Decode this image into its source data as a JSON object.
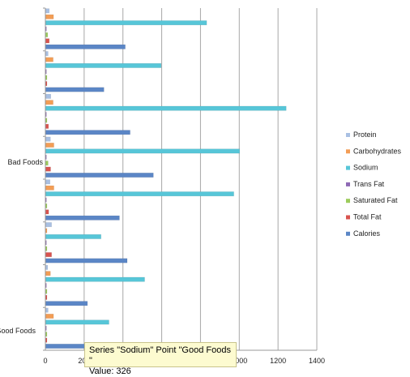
{
  "chart_data": {
    "type": "bar",
    "orientation": "horizontal",
    "title": "",
    "xlabel": "",
    "ylabel": "",
    "xlim": [
      0,
      1400
    ],
    "x_ticks": [
      "0",
      "200",
      "400",
      "600",
      "800",
      "1000",
      "1200",
      "1400"
    ],
    "grid": true,
    "legend_position": "right",
    "category_labels": [
      "Good Foods",
      "Bad Foods"
    ],
    "groups_bottom_to_top": [
      {
        "Calories": 210,
        "Total Fat": 3,
        "Saturated Fat": 1,
        "Trans Fat": 0,
        "Sodium": 326,
        "Carbohydrates": 40,
        "Protein": 12
      },
      {
        "Calories": 215,
        "Total Fat": 3,
        "Saturated Fat": 1,
        "Trans Fat": 0,
        "Sodium": 510,
        "Carbohydrates": 24,
        "Protein": 10
      },
      {
        "Calories": 420,
        "Total Fat": 30,
        "Saturated Fat": 1,
        "Trans Fat": 0,
        "Sodium": 285,
        "Carbohydrates": 5,
        "Protein": 30
      },
      {
        "Calories": 380,
        "Total Fat": 15,
        "Saturated Fat": 3,
        "Trans Fat": 0,
        "Sodium": 970,
        "Carbohydrates": 42,
        "Protein": 22
      },
      {
        "Calories": 555,
        "Total Fat": 25,
        "Saturated Fat": 12,
        "Trans Fat": 0,
        "Sodium": 1000,
        "Carbohydrates": 42,
        "Protein": 24
      },
      {
        "Calories": 435,
        "Total Fat": 14,
        "Saturated Fat": 4,
        "Trans Fat": 0,
        "Sodium": 1240,
        "Carbohydrates": 38,
        "Protein": 26
      },
      {
        "Calories": 300,
        "Total Fat": 6,
        "Saturated Fat": 2,
        "Trans Fat": 0,
        "Sodium": 595,
        "Carbohydrates": 38,
        "Protein": 12
      },
      {
        "Calories": 410,
        "Total Fat": 18,
        "Saturated Fat": 10,
        "Trans Fat": 0,
        "Sodium": 830,
        "Carbohydrates": 40,
        "Protein": 18
      }
    ],
    "series": [
      {
        "name": "Protein",
        "color": "#a9c0e3"
      },
      {
        "name": "Carbohydrates",
        "color": "#f39d55"
      },
      {
        "name": "Sodium",
        "color": "#57c6d8"
      },
      {
        "name": "Trans Fat",
        "color": "#8e6ab5"
      },
      {
        "name": "Saturated Fat",
        "color": "#9ccc5c"
      },
      {
        "name": "Total Fat",
        "color": "#d9534f"
      },
      {
        "name": "Calories",
        "color": "#5b86c6"
      }
    ]
  },
  "tooltip": {
    "line1": "Series \"Sodium\" Point \"Good Foods \"",
    "line2": "Value: 326"
  }
}
